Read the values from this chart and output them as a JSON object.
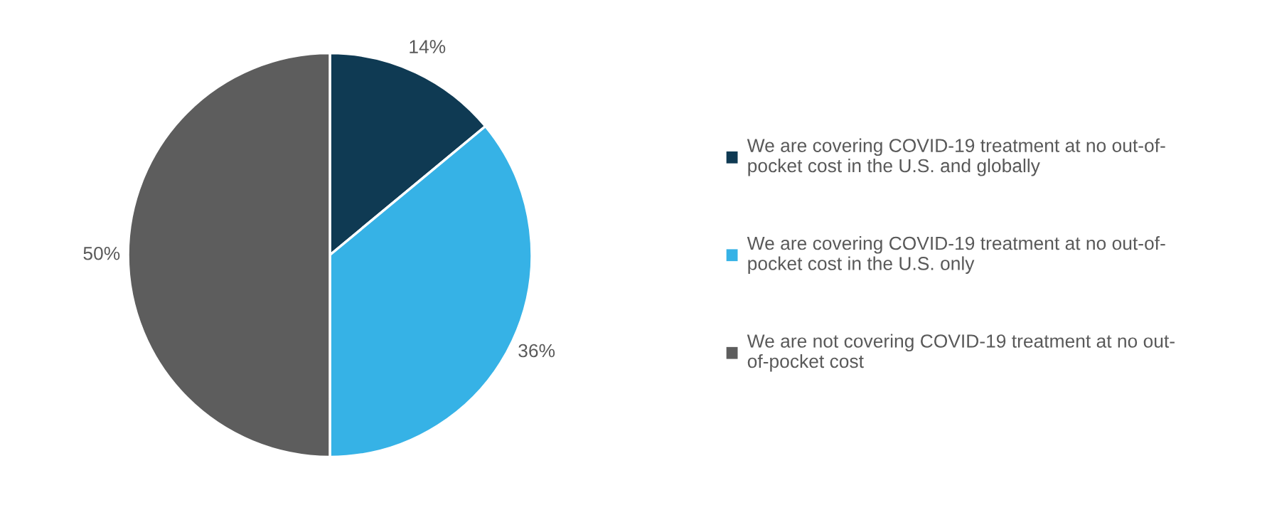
{
  "chart_data": {
    "type": "pie",
    "categories": [
      "We are covering COVID-19 treatment at no out-of-\npocket cost in the U.S. and globally",
      "We are covering COVID-19 treatment at no out-of-\npocket cost in the U.S. only",
      "We are not covering COVID-19 treatment at no out-\nof-pocket cost"
    ],
    "values": [
      14,
      36,
      50
    ],
    "colors": [
      "#0f3a53",
      "#36b2e6",
      "#5d5d5d"
    ],
    "value_labels": [
      "14%",
      "36%",
      "50%"
    ],
    "legend": "right"
  }
}
